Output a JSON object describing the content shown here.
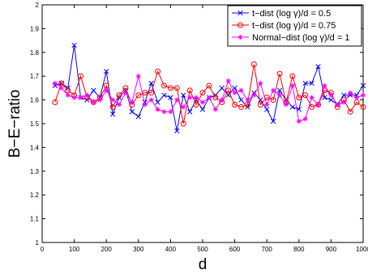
{
  "chart_data": {
    "type": "line",
    "title": "",
    "xlabel": "d",
    "ylabel": "B−E−ratio",
    "xlim": [
      0,
      1000
    ],
    "ylim": [
      1,
      2
    ],
    "xticks": [
      0,
      100,
      200,
      300,
      400,
      500,
      600,
      700,
      800,
      900,
      1000
    ],
    "yticks": [
      1,
      1.1,
      1.2,
      1.3,
      1.4,
      1.5,
      1.6,
      1.7,
      1.8,
      1.9,
      2
    ],
    "xtick_labels": [
      "0",
      "100",
      "200",
      "300",
      "400",
      "500",
      "600",
      "700",
      "800",
      "900",
      "1000"
    ],
    "ytick_labels": [
      "1",
      "1.1",
      "1.2",
      "1.3",
      "1.4",
      "1.5",
      "1.6",
      "1.7",
      "1.8",
      "1.9",
      "2"
    ],
    "grid": false,
    "legend_position": "top-right",
    "x": [
      40,
      60,
      80,
      100,
      120,
      140,
      160,
      180,
      200,
      220,
      240,
      260,
      280,
      300,
      320,
      340,
      360,
      380,
      400,
      420,
      440,
      460,
      480,
      500,
      520,
      540,
      560,
      580,
      600,
      620,
      640,
      660,
      680,
      700,
      720,
      740,
      760,
      780,
      800,
      820,
      840,
      860,
      880,
      900,
      920,
      940,
      960,
      980,
      1000
    ],
    "series": [
      {
        "name": "t−dist (log γ)/d = 0.5",
        "color": "#0000ff",
        "marker": "x",
        "values": [
          1.66,
          1.67,
          1.65,
          1.83,
          1.61,
          1.6,
          1.64,
          1.61,
          1.72,
          1.54,
          1.61,
          1.64,
          1.55,
          1.53,
          1.59,
          1.67,
          1.59,
          1.62,
          1.61,
          1.47,
          1.62,
          1.55,
          1.6,
          1.56,
          1.61,
          1.62,
          1.65,
          1.62,
          1.65,
          1.6,
          1.57,
          1.63,
          1.6,
          1.56,
          1.51,
          1.64,
          1.6,
          1.57,
          1.56,
          1.67,
          1.67,
          1.74,
          1.61,
          1.6,
          1.58,
          1.62,
          1.62,
          1.62,
          1.66
        ]
      },
      {
        "name": "t−dist (log γ)/d = 0.75",
        "color": "#ff0000",
        "marker": "o",
        "values": [
          1.59,
          1.67,
          1.64,
          1.62,
          1.7,
          1.61,
          1.59,
          1.61,
          1.66,
          1.57,
          1.62,
          1.65,
          1.58,
          1.62,
          1.63,
          1.63,
          1.72,
          1.66,
          1.65,
          1.65,
          1.5,
          1.64,
          1.58,
          1.63,
          1.66,
          1.61,
          1.59,
          1.64,
          1.58,
          1.57,
          1.58,
          1.75,
          1.58,
          1.61,
          1.6,
          1.71,
          1.59,
          1.7,
          1.61,
          1.62,
          1.57,
          1.58,
          1.64,
          1.63,
          1.57,
          1.6,
          1.55,
          1.59,
          1.57
        ]
      },
      {
        "name": "Normal−dist (log γ)/d = 1",
        "color": "#ff00ff",
        "marker": "*",
        "values": [
          1.67,
          1.65,
          1.62,
          1.61,
          1.61,
          1.62,
          1.59,
          1.6,
          1.64,
          1.6,
          1.58,
          1.63,
          1.59,
          1.7,
          1.58,
          1.6,
          1.56,
          1.55,
          1.55,
          1.6,
          1.57,
          1.61,
          1.61,
          1.59,
          1.61,
          1.56,
          1.6,
          1.68,
          1.63,
          1.64,
          1.6,
          1.62,
          1.67,
          1.58,
          1.64,
          1.62,
          1.58,
          1.66,
          1.51,
          1.52,
          1.61,
          1.58,
          1.66,
          1.62,
          1.58,
          1.59,
          1.63,
          1.61,
          1.62
        ]
      }
    ]
  }
}
